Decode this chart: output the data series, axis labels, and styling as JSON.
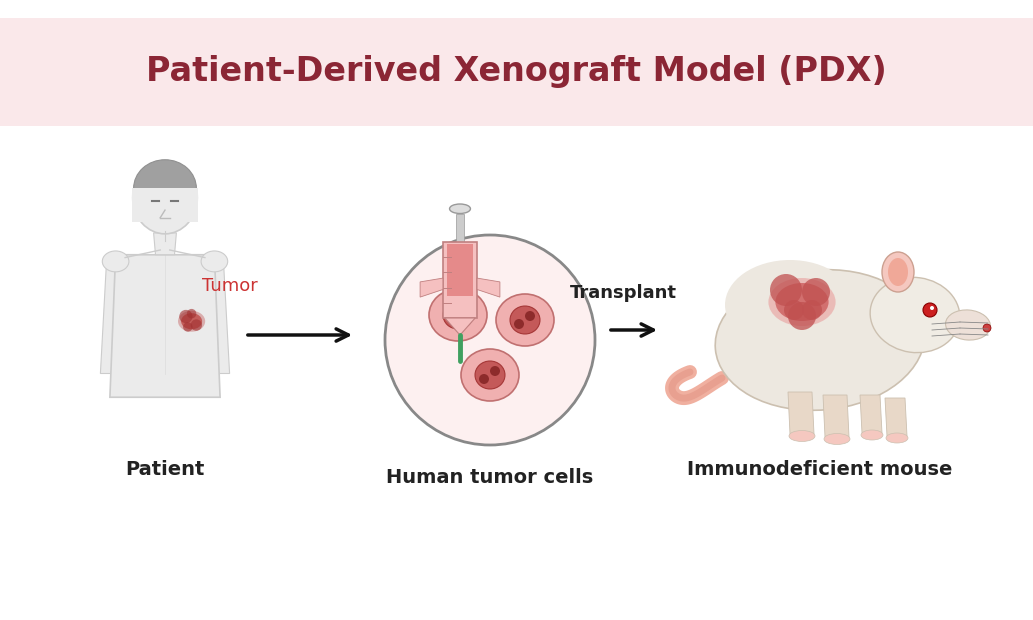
{
  "title": "Patient-Derived Xenograft Model (PDX)",
  "title_color": "#8B2635",
  "title_bg_color": "#FAE8EA",
  "bg_color": "#FFFFFF",
  "arrow2_label": "Transplant",
  "label_patient": "Patient",
  "label_tumor": "Tumor",
  "label_tumor_color": "#CC3333",
  "label_cells": "Human tumor cells",
  "label_mouse": "Immunodeficient mouse",
  "tumor_color": "#C0504D",
  "skin_color": "#EBEBEB",
  "skin_outline": "#CCCCCC",
  "hair_color": "#A0A0A0",
  "hair_outline": "#909090",
  "arrow_color": "#111111",
  "label_fontsize": 14,
  "transplant_fontsize": 13,
  "title_fontsize": 24
}
